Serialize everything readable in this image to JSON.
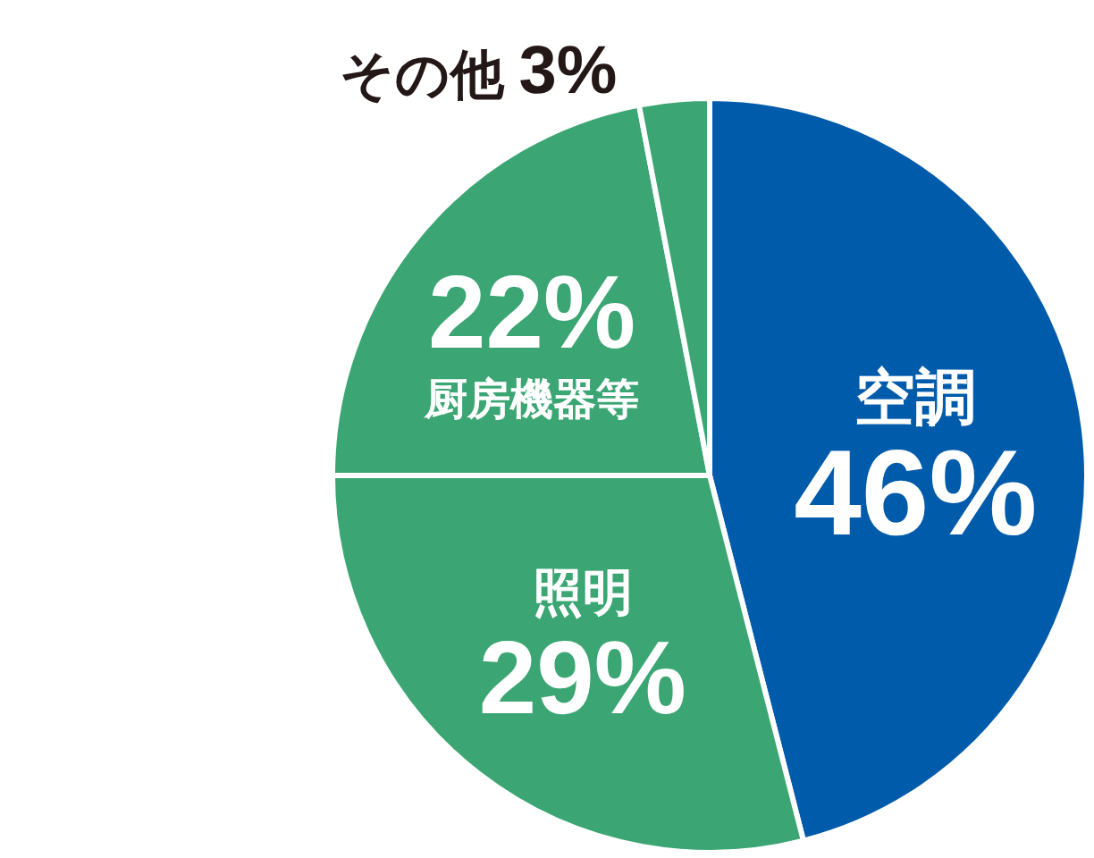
{
  "chart_data": {
    "type": "pie",
    "categories": [
      "空調",
      "照明",
      "厨房機器等",
      "その他"
    ],
    "values": [
      46,
      29,
      22,
      3
    ],
    "value_labels": [
      "46%",
      "29%",
      "22%",
      "3%"
    ],
    "colors": [
      "#005bab",
      "#3ba673",
      "#3ba673",
      "#3ba673"
    ]
  }
}
